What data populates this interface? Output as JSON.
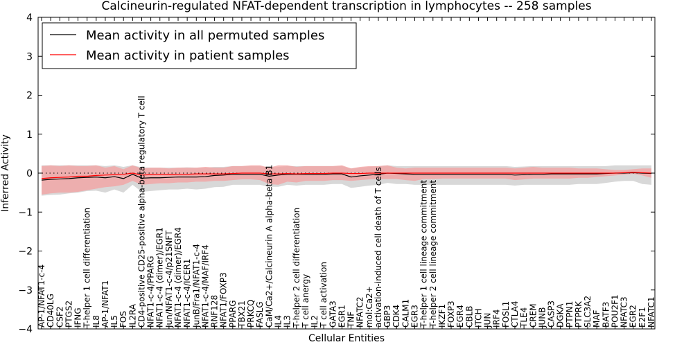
{
  "chart_data": {
    "type": "line",
    "title": "Calcineurin-regulated NFAT-dependent transcription in lymphocytes -- 258 samples",
    "xlabel": "Cellular Entities",
    "ylabel": "Inferred Activity",
    "ylim": [
      -4,
      4
    ],
    "yticks": [
      "4",
      "3",
      "2",
      "1",
      "0",
      "−1",
      "−2",
      "−3",
      "−4"
    ],
    "reference_line": 0,
    "legend": {
      "position": "top-left",
      "entries": [
        {
          "label": "Mean activity in all permuted samples",
          "color": "#000000"
        },
        {
          "label": "Mean activity in patient samples",
          "color": "#ff0000"
        }
      ]
    },
    "categories": [
      "AP-1/NFAT1-c-4",
      "CD40LG",
      "CSF2",
      "PTGS2",
      "IFNG",
      "T-helper 1 cell differentiation",
      "IL8",
      "AP-1/NFAT1",
      "IL5",
      "FOS",
      "IL2RA",
      "CD4-positive CD25-positive alpha-beta regulatory T cell",
      "NFAT1-c-4/PPARG",
      "NFAT1-c-4 (dimer)/EGR1",
      "Jun/NFAT1-c-4/p21SNFT",
      "NFAT1-c-4 (dimer)/EGR4",
      "NFAT1-c-4/ICER1",
      "JunB/Fra1/NFAT1-c-4",
      "NFAT1-c-4/MAF/IRF4",
      "RNF128",
      "NFAT1/FOXP3",
      "PPARG",
      "TBX21",
      "PRKCQ",
      "FASLG",
      "CaM/Ca2+/Calcineurin A alpha-beta B1",
      "IL4",
      "IL3",
      "T-helper 2 cell differentiation",
      "T cell anergy",
      "IL2",
      "T cell activation",
      "GATA3",
      "EGR1",
      "TNF",
      "NFATC2",
      "mol:Ca2+",
      "activation-induced cell death of T cells",
      "GBP3",
      "CDK4",
      "CALM1",
      "EGR3",
      "T-helper 1 cell lineage commitment",
      "T-helper 2 cell lineage commitment",
      "IKZF1",
      "FOXP3",
      "EGR4",
      "CBLB",
      "ITCH",
      "JUN",
      "IRF4",
      "FOSL1",
      "CTLA4",
      "TLE4",
      "CREM",
      "JUNB",
      "CASP3",
      "DGKA",
      "PTPN1",
      "PTPRK",
      "SLC3A2",
      "MAF",
      "BATF3",
      "POU2F1",
      "NFATC3",
      "EGR2",
      "E2F1",
      "NFATC1"
    ],
    "series": [
      {
        "name": "Mean activity in all permuted samples",
        "color": "#000000",
        "band_color": "#c8c8c8",
        "values": [
          -0.18,
          -0.16,
          -0.15,
          -0.14,
          -0.12,
          -0.11,
          -0.1,
          -0.12,
          -0.09,
          -0.14,
          -0.03,
          -0.13,
          -0.12,
          -0.12,
          -0.11,
          -0.1,
          -0.1,
          -0.1,
          -0.09,
          -0.06,
          -0.05,
          -0.03,
          -0.03,
          -0.03,
          -0.03,
          -0.08,
          -0.05,
          -0.03,
          -0.03,
          -0.03,
          -0.03,
          -0.03,
          -0.02,
          -0.02,
          -0.1,
          -0.07,
          -0.05,
          -0.03,
          0.0,
          -0.01,
          -0.02,
          -0.03,
          -0.03,
          -0.03,
          -0.03,
          -0.03,
          -0.03,
          -0.03,
          -0.03,
          -0.03,
          -0.03,
          -0.03,
          -0.05,
          -0.04,
          -0.03,
          -0.03,
          -0.02,
          -0.02,
          -0.02,
          -0.02,
          -0.02,
          -0.02,
          -0.01,
          0.0,
          0.0,
          0.01,
          0.0,
          -0.01
        ],
        "band_low": [
          -0.58,
          -0.56,
          -0.55,
          -0.52,
          -0.5,
          -0.46,
          -0.45,
          -0.5,
          -0.42,
          -0.5,
          -0.3,
          -0.48,
          -0.46,
          -0.44,
          -0.42,
          -0.42,
          -0.4,
          -0.42,
          -0.4,
          -0.36,
          -0.35,
          -0.3,
          -0.3,
          -0.3,
          -0.3,
          -0.35,
          -0.35,
          -0.3,
          -0.32,
          -0.3,
          -0.3,
          -0.3,
          -0.28,
          -0.28,
          -0.38,
          -0.35,
          -0.32,
          -0.3,
          -0.25,
          -0.28,
          -0.28,
          -0.3,
          -0.3,
          -0.3,
          -0.3,
          -0.3,
          -0.3,
          -0.3,
          -0.3,
          -0.3,
          -0.3,
          -0.3,
          -0.32,
          -0.3,
          -0.3,
          -0.3,
          -0.3,
          -0.3,
          -0.3,
          -0.28,
          -0.28,
          -0.28,
          -0.25,
          -0.22,
          -0.2,
          -0.2,
          -0.28,
          -0.3
        ],
        "band_high": [
          0.2,
          0.2,
          0.2,
          0.2,
          0.2,
          0.2,
          0.2,
          0.18,
          0.2,
          0.16,
          0.2,
          0.15,
          0.14,
          0.14,
          0.14,
          0.14,
          0.15,
          0.14,
          0.14,
          0.16,
          0.16,
          0.18,
          0.18,
          0.18,
          0.18,
          0.14,
          0.16,
          0.18,
          0.18,
          0.18,
          0.18,
          0.18,
          0.18,
          0.18,
          0.12,
          0.14,
          0.16,
          0.18,
          0.2,
          0.18,
          0.18,
          0.18,
          0.18,
          0.18,
          0.18,
          0.18,
          0.18,
          0.18,
          0.18,
          0.18,
          0.18,
          0.18,
          0.16,
          0.17,
          0.18,
          0.18,
          0.18,
          0.18,
          0.18,
          0.18,
          0.18,
          0.18,
          0.18,
          0.2,
          0.2,
          0.2,
          0.2,
          0.2
        ]
      },
      {
        "name": "Mean activity in patient samples",
        "color": "#ff0000",
        "band_color": "#f4a0a0",
        "values": [
          -0.14,
          -0.12,
          -0.11,
          -0.1,
          -0.08,
          -0.08,
          -0.06,
          -0.05,
          -0.04,
          -0.03,
          0.0,
          -0.05,
          -0.04,
          -0.03,
          -0.04,
          -0.03,
          -0.03,
          -0.02,
          -0.02,
          -0.02,
          -0.02,
          -0.01,
          0.0,
          0.0,
          0.0,
          -0.02,
          -0.02,
          -0.01,
          -0.02,
          -0.01,
          -0.01,
          -0.01,
          0.0,
          0.0,
          -0.01,
          -0.01,
          0.0,
          0.0,
          0.0,
          0.0,
          0.0,
          0.0,
          0.0,
          0.0,
          0.0,
          0.0,
          0.0,
          0.0,
          0.0,
          0.0,
          0.0,
          0.0,
          0.0,
          0.0,
          0.0,
          0.0,
          0.0,
          0.0,
          0.0,
          0.0,
          0.0,
          0.0,
          0.0,
          0.0,
          0.01,
          0.02,
          0.01,
          0.0
        ],
        "band_low": [
          -0.55,
          -0.52,
          -0.5,
          -0.5,
          -0.48,
          -0.44,
          -0.4,
          -0.36,
          -0.34,
          -0.3,
          -0.2,
          -0.3,
          -0.28,
          -0.26,
          -0.26,
          -0.24,
          -0.24,
          -0.22,
          -0.22,
          -0.2,
          -0.2,
          -0.18,
          -0.16,
          -0.16,
          -0.18,
          -0.28,
          -0.3,
          -0.22,
          -0.24,
          -0.2,
          -0.2,
          -0.2,
          -0.18,
          -0.18,
          -0.2,
          -0.18,
          -0.16,
          -0.15,
          -0.15,
          -0.15,
          -0.18,
          -0.2,
          -0.15,
          -0.15,
          -0.14,
          -0.14,
          -0.14,
          -0.14,
          -0.14,
          -0.14,
          -0.14,
          -0.14,
          -0.18,
          -0.16,
          -0.14,
          -0.14,
          -0.14,
          -0.14,
          -0.14,
          -0.12,
          -0.12,
          -0.1,
          -0.08,
          -0.06,
          -0.04,
          -0.02,
          -0.06,
          -0.12
        ],
        "band_high": [
          0.18,
          0.2,
          0.18,
          0.2,
          0.18,
          0.18,
          0.2,
          0.14,
          0.18,
          0.1,
          0.2,
          0.12,
          0.14,
          0.14,
          0.12,
          0.14,
          0.14,
          0.14,
          0.16,
          0.14,
          0.14,
          0.18,
          0.18,
          0.2,
          0.2,
          0.14,
          0.2,
          0.2,
          0.16,
          0.18,
          0.18,
          0.18,
          0.18,
          0.2,
          0.12,
          0.16,
          0.18,
          0.18,
          0.2,
          0.14,
          0.12,
          0.14,
          0.14,
          0.14,
          0.14,
          0.14,
          0.14,
          0.14,
          0.14,
          0.14,
          0.14,
          0.14,
          0.12,
          0.14,
          0.16,
          0.14,
          0.14,
          0.14,
          0.14,
          0.12,
          0.12,
          0.12,
          0.1,
          0.08,
          0.08,
          0.1,
          0.12,
          0.12
        ]
      }
    ]
  }
}
